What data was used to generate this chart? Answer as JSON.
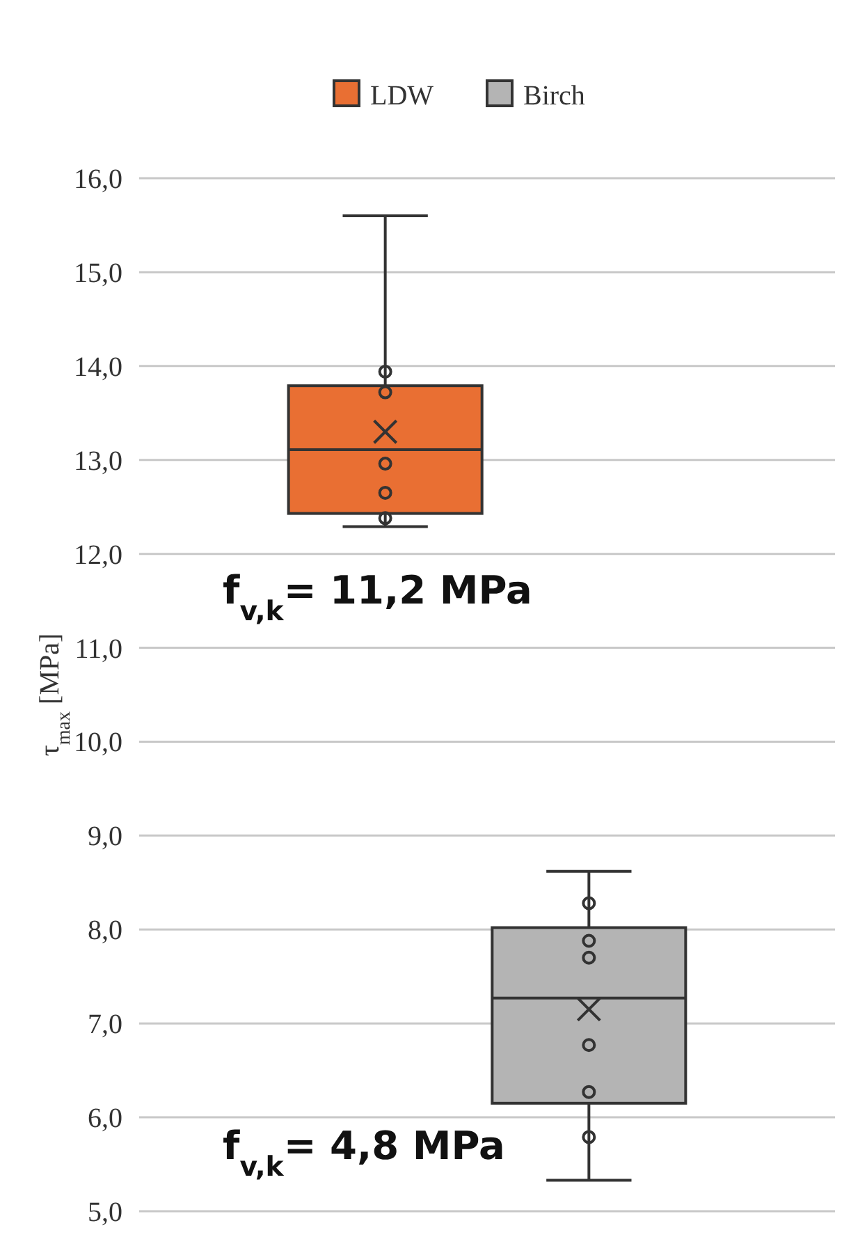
{
  "chart_data": {
    "type": "box",
    "ylabel": "τ$_{max}$ [MPa]",
    "categories": [
      null
    ],
    "series": [
      {
        "name": "LDW",
        "color": "#e96f33",
        "boxes": [
          {
            "low": 12.29,
            "q1": 12.43,
            "median": 13.11,
            "q3": 13.79,
            "high": 15.6,
            "mean": 13.3,
            "outliers": [
              12.38,
              12.65,
              12.96,
              13.72,
              13.94
            ]
          }
        ]
      },
      {
        "name": "Birch",
        "color": "#b4b4b4",
        "boxes": [
          {
            "low": 5.33,
            "q1": 6.15,
            "median": 7.27,
            "q3": 8.02,
            "high": 8.62,
            "mean": 7.15,
            "outliers": [
              5.79,
              6.27,
              6.77,
              7.7,
              7.88,
              8.28
            ]
          }
        ]
      }
    ],
    "ylim": [
      5,
      16
    ],
    "yticks": [
      {
        "value": 5,
        "label": "5,0"
      },
      {
        "value": 6,
        "label": "6,0"
      },
      {
        "value": 7,
        "label": "7,0"
      },
      {
        "value": 8,
        "label": "8,0"
      },
      {
        "value": 9,
        "label": "9,0"
      },
      {
        "value": 10,
        "label": "10,0"
      },
      {
        "value": 11,
        "label": "11,0"
      },
      {
        "value": 12,
        "label": "12,0"
      },
      {
        "value": 13,
        "label": "13,0"
      },
      {
        "value": 14,
        "label": "14,0"
      },
      {
        "value": 15,
        "label": "15,0"
      },
      {
        "value": 16,
        "label": "16,0"
      }
    ],
    "grid": "y",
    "legend": "top",
    "annotations": [
      "f$_{v,k}$= 11,2 MPa",
      "f$_{v,k}$= 4,8 MPa"
    ]
  }
}
